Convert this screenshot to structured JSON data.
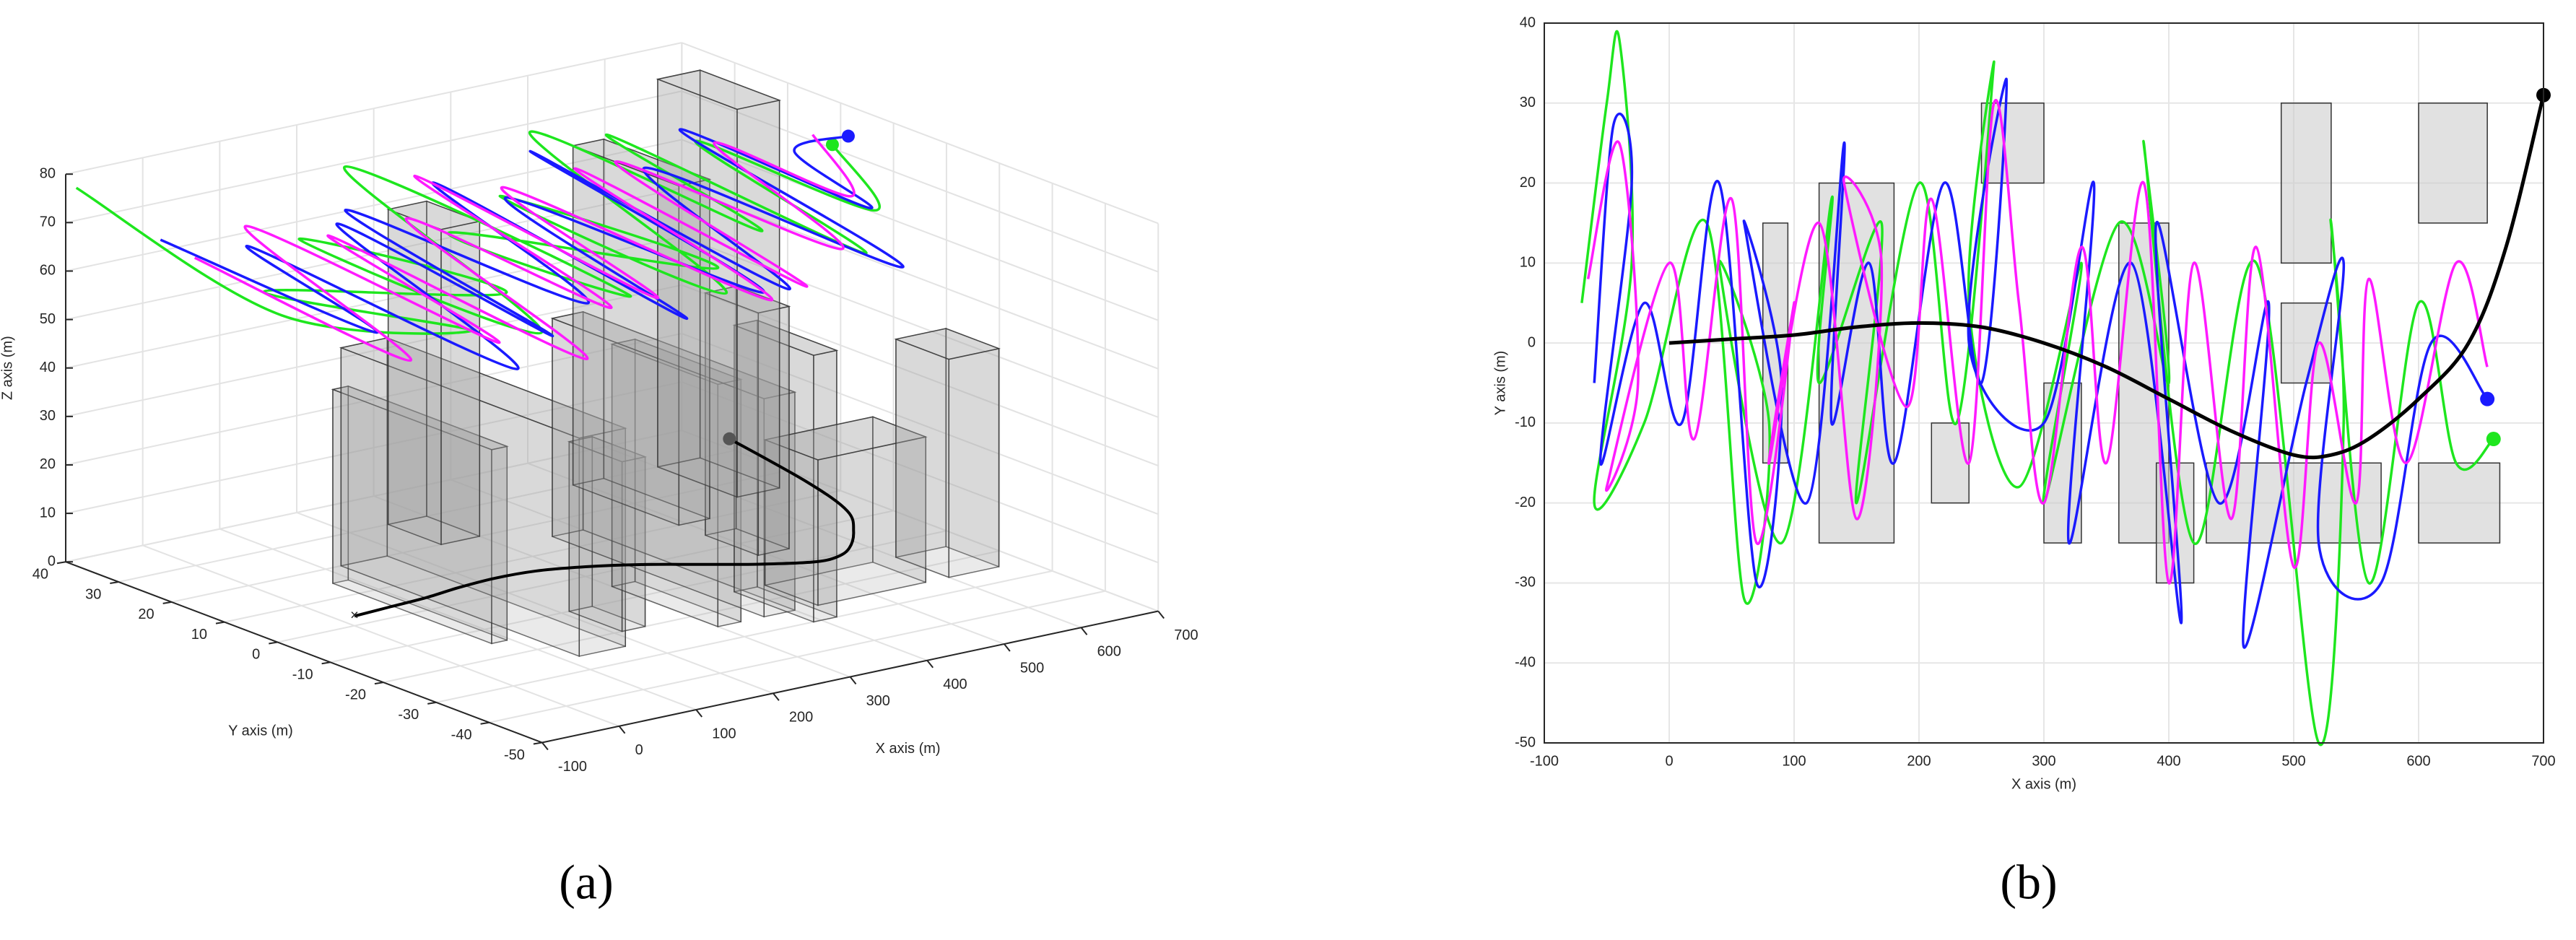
{
  "chart_data": [
    {
      "type": "line3d",
      "caption": "(a)",
      "xlabel": "X axis (m)",
      "ylabel": "Y axis (m)",
      "zlabel": "Z axis (m)",
      "xlim": [
        -100,
        700
      ],
      "ylim": [
        -50,
        40
      ],
      "zlim": [
        0,
        80
      ],
      "xticks": [
        -100,
        0,
        100,
        200,
        300,
        400,
        500,
        600,
        700
      ],
      "yticks": [
        -50,
        -40,
        -30,
        -20,
        -10,
        0,
        10,
        20,
        30,
        40
      ],
      "zticks": [
        0,
        10,
        20,
        30,
        40,
        50,
        60,
        70,
        80
      ],
      "grid": true,
      "buildings": [
        [
          75,
          95,
          -15,
          15,
          40
        ],
        [
          120,
          180,
          -25,
          20,
          45
        ],
        [
          210,
          240,
          -20,
          -10,
          35
        ],
        [
          250,
          300,
          20,
          30,
          65
        ],
        [
          300,
          330,
          -25,
          -5,
          50
        ],
        [
          360,
          400,
          -25,
          15,
          45
        ],
        [
          390,
          420,
          -30,
          -15,
          55
        ],
        [
          430,
          570,
          -25,
          -15,
          30
        ],
        [
          490,
          530,
          -5,
          5,
          50
        ],
        [
          490,
          530,
          10,
          30,
          70
        ],
        [
          600,
          655,
          15,
          30,
          80
        ],
        [
          600,
          665,
          -25,
          -15,
          45
        ]
      ],
      "series": [
        {
          "color": "#1ee61e",
          "end_marker": true,
          "x": [
            -100,
            -60,
            -20,
            20,
            60,
            100,
            140,
            180,
            220,
            260,
            300,
            340,
            380,
            420,
            460,
            500,
            540,
            580,
            620,
            655
          ],
          "y": [
            38,
            5,
            -25,
            20,
            -20,
            25,
            -15,
            28,
            -20,
            20,
            -25,
            22,
            -15,
            28,
            -10,
            25,
            -18,
            20,
            -8,
            5
          ],
          "z": [
            78,
            64,
            72,
            60,
            75,
            66,
            62,
            77,
            69,
            64,
            74,
            68,
            62,
            76,
            70,
            74,
            66,
            72,
            68,
            75
          ]
        },
        {
          "color": "#1a1aff",
          "end_marker": true,
          "x": [
            -80,
            -40,
            0,
            40,
            80,
            120,
            160,
            200,
            240,
            280,
            320,
            360,
            400,
            440,
            480,
            520,
            560,
            600,
            640,
            655
          ],
          "y": [
            25,
            -10,
            20,
            -25,
            15,
            -20,
            25,
            -15,
            20,
            -22,
            18,
            -25,
            25,
            -18,
            15,
            -28,
            20,
            -10,
            10,
            2
          ],
          "z": [
            72,
            66,
            70,
            62,
            74,
            64,
            70,
            66,
            75,
            63,
            70,
            67,
            74,
            62,
            72,
            68,
            75,
            70,
            72,
            78
          ]
        },
        {
          "color": "#ff1aff",
          "end_marker": false,
          "x": [
            -70,
            -30,
            10,
            50,
            90,
            130,
            170,
            210,
            250,
            290,
            330,
            370,
            410,
            450,
            490,
            530,
            570,
            610,
            650
          ],
          "y": [
            20,
            -15,
            22,
            -20,
            18,
            -25,
            15,
            -18,
            25,
            -15,
            20,
            -25,
            18,
            -20,
            22,
            -15,
            15,
            -5,
            8
          ],
          "z": [
            70,
            62,
            73,
            65,
            70,
            61,
            72,
            66,
            74,
            64,
            71,
            65,
            73,
            63,
            70,
            66,
            74,
            70,
            76
          ]
        },
        {
          "color": "#000000",
          "end_marker": true,
          "x": [
            0,
            50,
            100,
            150,
            200,
            250,
            300,
            350,
            400,
            450,
            500,
            530,
            560,
            600,
            640,
            670,
            700
          ],
          "y": [
            0,
            0.5,
            1,
            2,
            2.5,
            2,
            0,
            -3,
            -7,
            -11,
            -14,
            -14,
            -12,
            -7,
            0,
            12,
            31
          ],
          "z": [
            2,
            2,
            2,
            2,
            2,
            2,
            2,
            2,
            2,
            2,
            2,
            2,
            2,
            2,
            2,
            2,
            2
          ]
        }
      ]
    },
    {
      "type": "line",
      "caption": "(b)",
      "xlabel": "X axis (m)",
      "ylabel": "Y axis (m)",
      "xlim": [
        -100,
        700
      ],
      "ylim": [
        -50,
        40
      ],
      "xticks": [
        -100,
        0,
        100,
        200,
        300,
        400,
        500,
        600,
        700
      ],
      "yticks": [
        -50,
        -40,
        -30,
        -20,
        -10,
        0,
        10,
        20,
        30,
        40
      ],
      "grid": true,
      "obstacles": [
        [
          75,
          95,
          -15,
          15
        ],
        [
          120,
          180,
          -25,
          20
        ],
        [
          210,
          240,
          -20,
          -10
        ],
        [
          250,
          300,
          20,
          30
        ],
        [
          300,
          330,
          -25,
          -5
        ],
        [
          360,
          400,
          -25,
          15
        ],
        [
          390,
          420,
          -30,
          -15
        ],
        [
          430,
          570,
          -25,
          -15
        ],
        [
          490,
          530,
          -5,
          5
        ],
        [
          490,
          530,
          10,
          30
        ],
        [
          600,
          655,
          15,
          30
        ],
        [
          600,
          665,
          -25,
          -15
        ]
      ],
      "series": [
        {
          "color": "#1ee61e",
          "end_marker": true,
          "x": [
            -70,
            -50,
            -40,
            -30,
            -60,
            -20,
            30,
            60,
            80,
            40,
            90,
            130,
            120,
            170,
            150,
            200,
            230,
            260,
            240,
            280,
            330,
            300,
            360,
            400,
            380,
            420,
            470,
            520,
            540,
            530,
            560,
            600,
            630,
            660
          ],
          "values": [
            5,
            30,
            38,
            10,
            -20,
            -10,
            15,
            -32,
            -10,
            10,
            -25,
            18,
            -5,
            15,
            -20,
            20,
            -10,
            35,
            5,
            -18,
            10,
            -20,
            15,
            -5,
            25,
            -25,
            10,
            -50,
            -10,
            15,
            -30,
            5,
            -15,
            -12
          ]
        },
        {
          "color": "#1a1aff",
          "end_marker": true,
          "x": [
            -60,
            -45,
            -30,
            -55,
            -20,
            10,
            40,
            70,
            90,
            60,
            110,
            140,
            130,
            160,
            180,
            220,
            250,
            270,
            240,
            300,
            340,
            320,
            370,
            410,
            390,
            440,
            480,
            460,
            510,
            540,
            520,
            570,
            610,
            655
          ],
          "values": [
            -5,
            27,
            20,
            -15,
            5,
            -10,
            20,
            -30,
            -5,
            15,
            -20,
            25,
            -10,
            10,
            -15,
            20,
            -5,
            33,
            0,
            -10,
            20,
            -25,
            10,
            -35,
            15,
            -20,
            5,
            -38,
            -5,
            10,
            -25,
            -30,
            0,
            -7
          ]
        },
        {
          "color": "#ff1aff",
          "end_marker": false,
          "x": [
            -65,
            -40,
            -25,
            -50,
            0,
            20,
            50,
            70,
            100,
            80,
            120,
            150,
            170,
            140,
            190,
            210,
            240,
            260,
            280,
            300,
            330,
            350,
            380,
            400,
            420,
            450,
            470,
            500,
            520,
            550,
            560,
            590,
            630,
            655
          ],
          "values": [
            8,
            25,
            -5,
            -18,
            10,
            -12,
            18,
            -25,
            5,
            -15,
            15,
            -22,
            10,
            20,
            -8,
            18,
            -15,
            30,
            5,
            -20,
            12,
            -15,
            20,
            -30,
            10,
            -22,
            12,
            -28,
            0,
            -20,
            8,
            -15,
            10,
            -3
          ]
        },
        {
          "color": "#000000",
          "end_marker": true,
          "x": [
            0,
            50,
            100,
            150,
            200,
            250,
            300,
            350,
            400,
            450,
            500,
            530,
            560,
            600,
            640,
            670,
            700
          ],
          "values": [
            0,
            0.5,
            1,
            2,
            2.5,
            2,
            0,
            -3,
            -7,
            -11,
            -14,
            -14,
            -12,
            -7,
            0,
            12,
            31
          ]
        }
      ]
    }
  ]
}
